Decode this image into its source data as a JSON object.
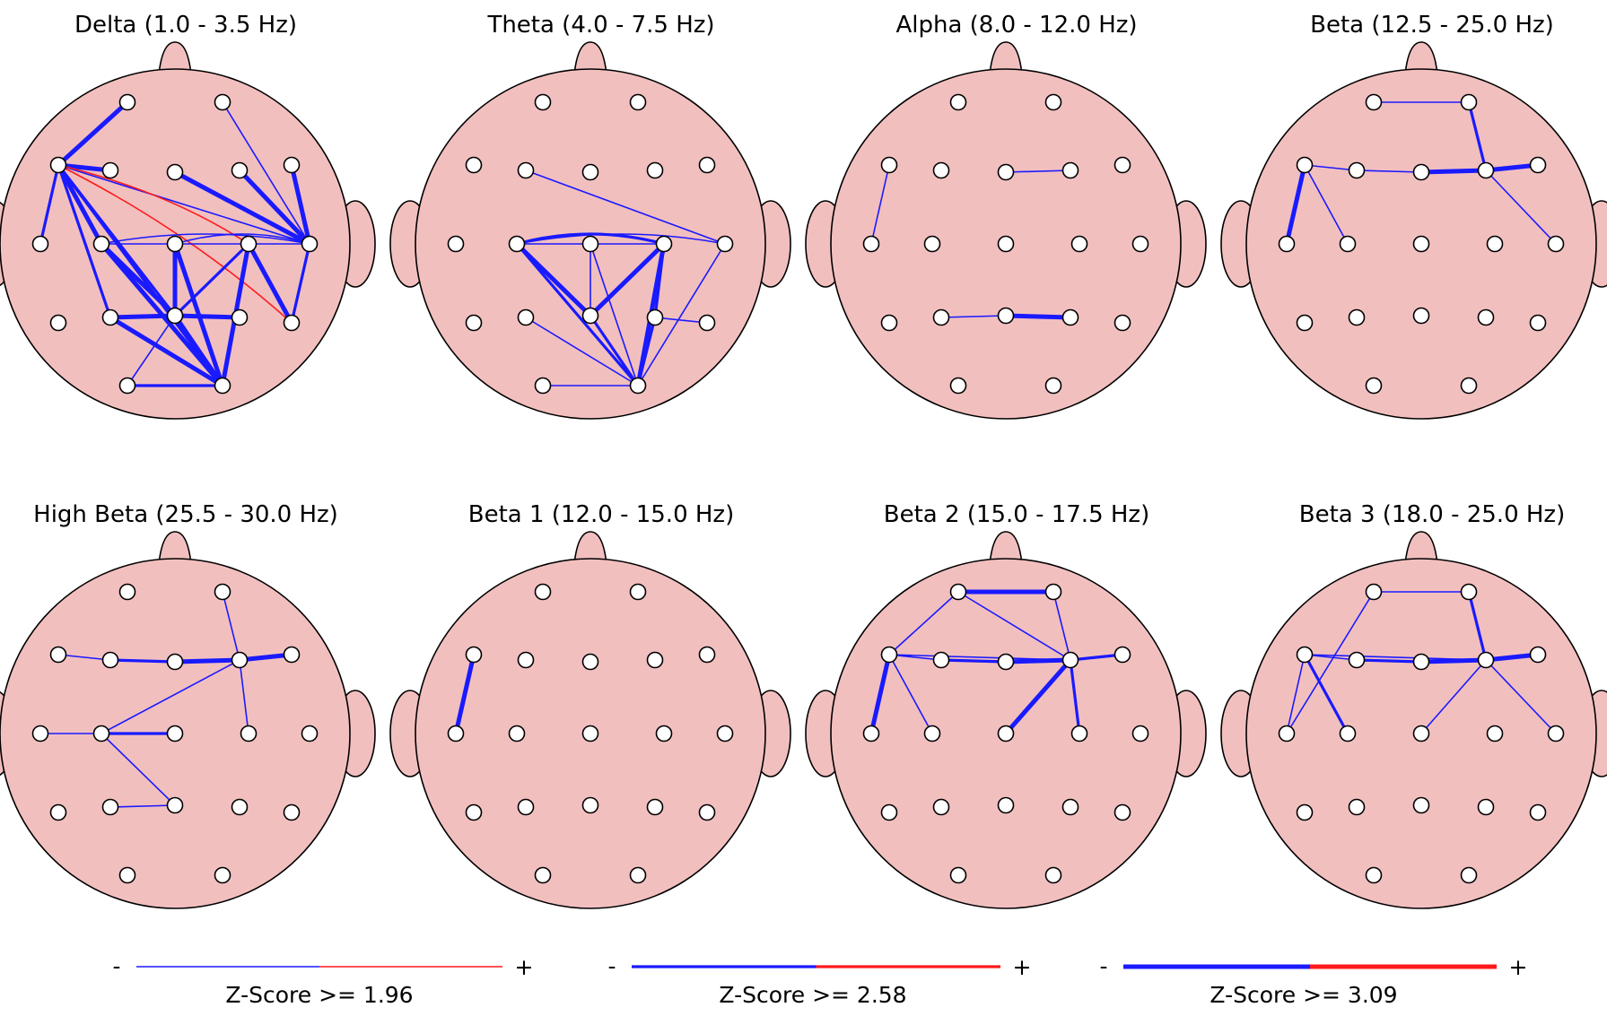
{
  "electrode_labels": [
    "Fp1",
    "Fp2",
    "F7",
    "F3",
    "Fz",
    "F4",
    "F8",
    "T3",
    "C3",
    "Cz",
    "C4",
    "T4",
    "T5",
    "P3",
    "Pz",
    "P4",
    "T6",
    "O1",
    "O2"
  ],
  "colors": {
    "head_fill": "#f2bfbf",
    "outline": "#000000",
    "electrode_fill": "#ffffff",
    "decrease": "#1a1aff",
    "increase": "#ff1a1a"
  },
  "panels": [
    {
      "title": "Delta (1.0 - 3.5 Hz)",
      "connections": [
        [
          "Fp1",
          "F7",
          3,
          "-"
        ],
        [
          "F7",
          "F3",
          3,
          "-"
        ],
        [
          "F7",
          "T3",
          2,
          "-"
        ],
        [
          "F7",
          "C3",
          3,
          "-"
        ],
        [
          "F7",
          "P3",
          2,
          "-"
        ],
        [
          "F7",
          "Pz",
          2,
          "-"
        ],
        [
          "F7",
          "O2",
          2,
          "-"
        ],
        [
          "F7",
          "T4",
          1,
          "-"
        ],
        [
          "F7",
          "C4",
          1,
          "+"
        ],
        [
          "F7",
          "T6",
          1,
          "+"
        ],
        [
          "Fp2",
          "T4",
          1,
          "-"
        ],
        [
          "Fz",
          "T4",
          3,
          "-"
        ],
        [
          "F4",
          "T4",
          3,
          "-"
        ],
        [
          "F8",
          "T4",
          3,
          "-"
        ],
        [
          "C3",
          "T4",
          1,
          "-"
        ],
        [
          "Cz",
          "T4",
          1,
          "-"
        ],
        [
          "C4",
          "T4",
          1,
          "-"
        ],
        [
          "T4",
          "T6",
          2,
          "-"
        ],
        [
          "C3",
          "Pz",
          3,
          "-"
        ],
        [
          "C3",
          "O2",
          3,
          "-"
        ],
        [
          "Cz",
          "Pz",
          3,
          "-"
        ],
        [
          "Cz",
          "O2",
          3,
          "-"
        ],
        [
          "C4",
          "Pz",
          2,
          "-"
        ],
        [
          "C4",
          "O2",
          3,
          "-"
        ],
        [
          "C4",
          "T6",
          3,
          "-"
        ],
        [
          "P3",
          "Pz",
          3,
          "-"
        ],
        [
          "P3",
          "O2",
          3,
          "-"
        ],
        [
          "Pz",
          "P4",
          3,
          "-"
        ],
        [
          "Pz",
          "O2",
          3,
          "-"
        ],
        [
          "O1",
          "O2",
          2,
          "-"
        ],
        [
          "O1",
          "Pz",
          1,
          "-"
        ],
        [
          "C3",
          "Cz",
          1,
          "-"
        ],
        [
          "Cz",
          "C4",
          1,
          "-"
        ]
      ]
    },
    {
      "title": "Theta (4.0 - 7.5 Hz)",
      "connections": [
        [
          "F3",
          "T4",
          1,
          "-"
        ],
        [
          "C3",
          "Cz",
          1,
          "-"
        ],
        [
          "Cz",
          "C4",
          1,
          "-"
        ],
        [
          "C3",
          "T4",
          1,
          "-"
        ],
        [
          "C3",
          "C4",
          2,
          "-"
        ],
        [
          "C3",
          "Pz",
          3,
          "-"
        ],
        [
          "C3",
          "O2",
          2,
          "-"
        ],
        [
          "Cz",
          "Pz",
          1,
          "-"
        ],
        [
          "Cz",
          "O2",
          1,
          "-"
        ],
        [
          "C4",
          "Pz",
          3,
          "-"
        ],
        [
          "C4",
          "O2",
          3,
          "-"
        ],
        [
          "C4",
          "P4",
          2,
          "-"
        ],
        [
          "T4",
          "O2",
          1,
          "-"
        ],
        [
          "Pz",
          "O2",
          2,
          "-"
        ],
        [
          "P3",
          "O2",
          1,
          "-"
        ],
        [
          "O1",
          "O2",
          1,
          "-"
        ],
        [
          "P4",
          "O2",
          2,
          "-"
        ],
        [
          "P4",
          "T6",
          1,
          "-"
        ]
      ]
    },
    {
      "title": "Alpha (8.0 - 12.0 Hz)",
      "connections": [
        [
          "F7",
          "T3",
          1,
          "-"
        ],
        [
          "Fz",
          "F4",
          1,
          "-"
        ],
        [
          "P3",
          "Pz",
          1,
          "-"
        ],
        [
          "Pz",
          "P4",
          3,
          "-"
        ]
      ]
    },
    {
      "title": "Beta (12.5 - 25.0 Hz)",
      "connections": [
        [
          "Fp1",
          "Fp2",
          1,
          "-"
        ],
        [
          "Fp2",
          "F4",
          2,
          "-"
        ],
        [
          "F7",
          "F3",
          1,
          "-"
        ],
        [
          "F3",
          "Fz",
          1,
          "-"
        ],
        [
          "Fz",
          "F4",
          3,
          "-"
        ],
        [
          "F4",
          "F8",
          3,
          "-"
        ],
        [
          "F7",
          "T3",
          3,
          "-"
        ],
        [
          "F7",
          "C3",
          1,
          "-"
        ],
        [
          "F4",
          "T4",
          1,
          "-"
        ]
      ]
    },
    {
      "title": "High Beta (25.5 - 30.0 Hz)",
      "connections": [
        [
          "F7",
          "F3",
          1,
          "-"
        ],
        [
          "F3",
          "Fz",
          2,
          "-"
        ],
        [
          "Fz",
          "F4",
          3,
          "-"
        ],
        [
          "F4",
          "F8",
          3,
          "-"
        ],
        [
          "Fp2",
          "F4",
          1,
          "-"
        ],
        [
          "F4",
          "C4",
          1,
          "-"
        ],
        [
          "T3",
          "C3",
          1,
          "-"
        ],
        [
          "C3",
          "Cz",
          2,
          "-"
        ],
        [
          "C3",
          "F4",
          1,
          "-"
        ],
        [
          "C3",
          "Pz",
          1,
          "-"
        ],
        [
          "P3",
          "Pz",
          1,
          "-"
        ]
      ]
    },
    {
      "title": "Beta 1 (12.0 - 15.0 Hz)",
      "connections": [
        [
          "F7",
          "T3",
          3,
          "-"
        ]
      ]
    },
    {
      "title": "Beta 2 (15.0 - 17.5 Hz)",
      "connections": [
        [
          "Fp1",
          "Fp2",
          3,
          "-"
        ],
        [
          "Fp1",
          "F7",
          1,
          "-"
        ],
        [
          "Fp1",
          "F4",
          1,
          "-"
        ],
        [
          "Fp2",
          "F4",
          1,
          "-"
        ],
        [
          "F7",
          "F3",
          1,
          "-"
        ],
        [
          "F3",
          "Fz",
          2,
          "-"
        ],
        [
          "Fz",
          "F4",
          3,
          "-"
        ],
        [
          "F4",
          "F8",
          2,
          "-"
        ],
        [
          "F7",
          "T3",
          3,
          "-"
        ],
        [
          "F7",
          "C3",
          1,
          "-"
        ],
        [
          "F7",
          "F4",
          1,
          "-"
        ],
        [
          "F4",
          "Cz",
          3,
          "-"
        ],
        [
          "F4",
          "C4",
          2,
          "-"
        ]
      ]
    },
    {
      "title": "Beta 3 (18.0 - 25.0 Hz)",
      "connections": [
        [
          "Fp1",
          "Fp2",
          1,
          "-"
        ],
        [
          "Fp1",
          "T3",
          1,
          "-"
        ],
        [
          "Fp2",
          "F4",
          2,
          "-"
        ],
        [
          "F7",
          "F3",
          1,
          "-"
        ],
        [
          "F3",
          "Fz",
          2,
          "-"
        ],
        [
          "Fz",
          "F4",
          3,
          "-"
        ],
        [
          "F4",
          "F8",
          3,
          "-"
        ],
        [
          "F7",
          "T3",
          1,
          "-"
        ],
        [
          "F7",
          "C3",
          2,
          "-"
        ],
        [
          "F7",
          "F4",
          1,
          "-"
        ],
        [
          "F4",
          "Cz",
          1,
          "-"
        ],
        [
          "F4",
          "T4",
          1,
          "-"
        ]
      ]
    }
  ],
  "legend": [
    {
      "minus": "-",
      "plus": "+",
      "label": "Z-Score >= 1.96",
      "level": 1
    },
    {
      "minus": "-",
      "plus": "+",
      "label": "Z-Score >= 2.58",
      "level": 2
    },
    {
      "minus": "-",
      "plus": "+",
      "label": "Z-Score >= 3.09",
      "level": 3
    }
  ]
}
